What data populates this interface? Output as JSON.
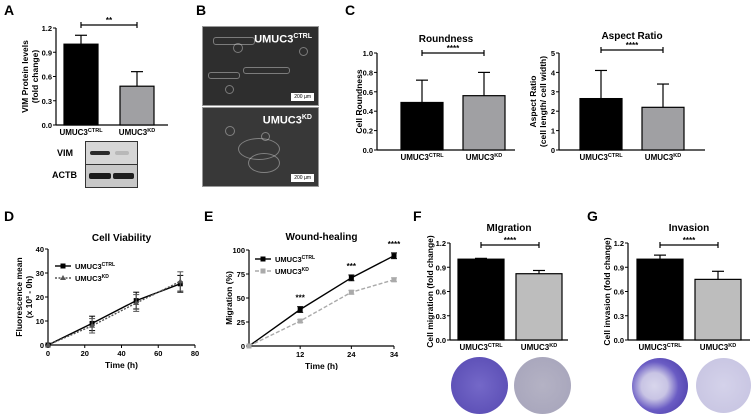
{
  "panels": {
    "A": {
      "label": "A"
    },
    "B": {
      "label": "B"
    },
    "C": {
      "label": "C"
    },
    "D": {
      "label": "D"
    },
    "E": {
      "label": "E"
    },
    "F": {
      "label": "F"
    },
    "G": {
      "label": "G"
    }
  },
  "groups": {
    "ctrl": "UMUC3",
    "ctrl_sup": "CTRL",
    "kd": "UMUC3",
    "kd_sup": "KD"
  },
  "colors": {
    "ctrl": "#000000",
    "kd": "#a0a0a3",
    "kd_light": "#bdbdbd",
    "stain": "#5a4fb8"
  },
  "blot": {
    "rows": [
      "VIM",
      "ACTB"
    ]
  },
  "micrographs": {
    "ctrl_label": "UMUC3",
    "ctrl_sup": "CTRL",
    "kd_label": "UMUC3",
    "kd_sup": "KD",
    "scale": "200 µm"
  },
  "chart_data": [
    {
      "id": "A",
      "type": "bar",
      "title": "",
      "ylabel": "VIM Protein levels (fold change)",
      "categories": [
        "UMUC3CTRL",
        "UMUC3KD"
      ],
      "values": [
        1.0,
        0.48
      ],
      "errors": [
        0.11,
        0.18
      ],
      "ylim": [
        0,
        1.2
      ],
      "yticks": [
        "0.0",
        "0.3",
        "0.6",
        "0.9",
        "1.2"
      ],
      "significance": "**"
    },
    {
      "id": "C1",
      "type": "bar",
      "title": "Roundness",
      "ylabel": "Cell Roundness",
      "categories": [
        "UMUC3CTRL",
        "UMUC3KD"
      ],
      "values": [
        0.49,
        0.56
      ],
      "errors": [
        0.23,
        0.24
      ],
      "ylim": [
        0,
        1.0
      ],
      "yticks": [
        "0.0",
        "0.2",
        "0.4",
        "0.6",
        "0.8",
        "1.0"
      ],
      "significance": "****"
    },
    {
      "id": "C2",
      "type": "bar",
      "title": "Aspect Ratio",
      "ylabel": "Aspect Ratio (cell length/ cell width)",
      "categories": [
        "UMUC3CTRL",
        "UMUC3KD"
      ],
      "values": [
        2.65,
        2.2
      ],
      "errors": [
        1.45,
        1.2
      ],
      "ylim": [
        0,
        5
      ],
      "yticks": [
        "0",
        "1",
        "2",
        "3",
        "4",
        "5"
      ],
      "significance": "****"
    },
    {
      "id": "D",
      "type": "line",
      "title": "Cell Viability",
      "xlabel": "Time (h)",
      "ylabel": "Fluorescence mean (x 10³ - 0h)",
      "x": [
        0,
        24,
        48,
        72
      ],
      "series": [
        {
          "name": "UMUC3CTRL",
          "values": [
            0,
            9,
            18.5,
            25.5
          ],
          "errors": [
            0,
            3,
            3.5,
            3.5
          ]
        },
        {
          "name": "UMUC3KD",
          "values": [
            0,
            8,
            17.5,
            26.5
          ],
          "errors": [
            0,
            3,
            3.5,
            4
          ]
        }
      ],
      "xlim": [
        0,
        80
      ],
      "ylim": [
        0,
        40
      ],
      "xticks": [
        "0",
        "20",
        "40",
        "60",
        "80"
      ],
      "yticks": [
        "0",
        "10",
        "20",
        "30",
        "40"
      ]
    },
    {
      "id": "E",
      "type": "line",
      "title": "Wound-healing",
      "xlabel": "Time (h)",
      "ylabel": "Migration (%)",
      "x": [
        0,
        12,
        24,
        34
      ],
      "series": [
        {
          "name": "UMUC3CTRL",
          "values": [
            0,
            38,
            71,
            94
          ],
          "errors": [
            0,
            3,
            3,
            3
          ]
        },
        {
          "name": "UMUC3KD",
          "values": [
            0,
            26,
            56,
            69
          ],
          "errors": [
            0,
            1.5,
            2,
            2
          ]
        }
      ],
      "ylim": [
        0,
        100
      ],
      "xticks": [
        "12",
        "24",
        "34"
      ],
      "yticks": [
        "0",
        "25",
        "50",
        "75",
        "100"
      ],
      "annotations": [
        "***",
        "***",
        "****"
      ]
    },
    {
      "id": "F",
      "type": "bar",
      "title": "MIgration",
      "ylabel": "Cell migration (fold change)",
      "categories": [
        "UMUC3CTRL",
        "UMUC3KD"
      ],
      "values": [
        1.0,
        0.82
      ],
      "errors": [
        0.01,
        0.04
      ],
      "ylim": [
        0,
        1.2
      ],
      "yticks": [
        "0.0",
        "0.3",
        "0.6",
        "0.9",
        "1.2"
      ],
      "significance": "****"
    },
    {
      "id": "G",
      "type": "bar",
      "title": "Invasion",
      "ylabel": "Cell invasion (fold change)",
      "categories": [
        "UMUC3CTRL",
        "UMUC3KD"
      ],
      "values": [
        1.0,
        0.75
      ],
      "errors": [
        0.05,
        0.1
      ],
      "ylim": [
        0,
        1.2
      ],
      "yticks": [
        "0.0",
        "0.3",
        "0.6",
        "0.9",
        "1.2"
      ],
      "significance": "****"
    }
  ]
}
